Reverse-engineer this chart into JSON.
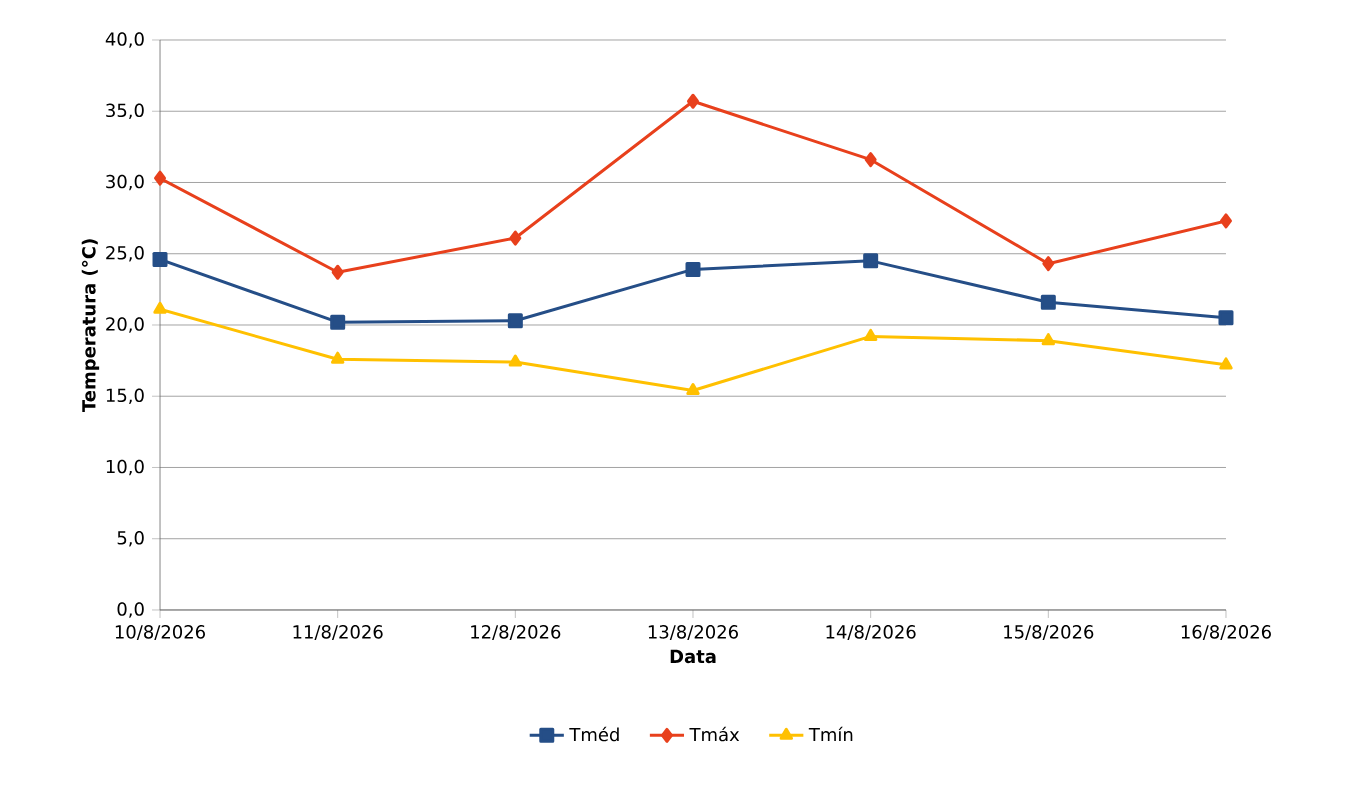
{
  "chart_data": {
    "type": "line",
    "xlabel": "Data",
    "ylabel": "Temperatura (°C)",
    "categories": [
      "10/8/2026",
      "11/8/2026",
      "12/8/2026",
      "13/8/2026",
      "14/8/2026",
      "15/8/2026",
      "16/8/2026"
    ],
    "series": [
      {
        "name": "Tméd",
        "color": "#254e87",
        "marker": "square",
        "values": [
          24.6,
          20.2,
          20.3,
          23.9,
          24.5,
          21.6,
          20.5
        ]
      },
      {
        "name": "Tmáx",
        "color": "#e8401c",
        "marker": "diamond",
        "values": [
          30.3,
          23.7,
          26.1,
          35.7,
          31.6,
          24.3,
          27.3
        ]
      },
      {
        "name": "Tmín",
        "color": "#ffc000",
        "marker": "triangle",
        "values": [
          21.1,
          17.6,
          17.4,
          15.4,
          19.2,
          18.9,
          17.2
        ]
      }
    ],
    "ylim": [
      0,
      40
    ],
    "yticks": [
      {
        "value": 0,
        "label": "0,0"
      },
      {
        "value": 5,
        "label": "5,0"
      },
      {
        "value": 10,
        "label": "10,0"
      },
      {
        "value": 15,
        "label": "15,0"
      },
      {
        "value": 20,
        "label": "20,0"
      },
      {
        "value": 25,
        "label": "25,0"
      },
      {
        "value": 30,
        "label": "30,0"
      },
      {
        "value": 35,
        "label": "35,0"
      },
      {
        "value": 40,
        "label": "40,0"
      }
    ],
    "grid": "y",
    "legend": "bottom",
    "line_style": "solid"
  }
}
